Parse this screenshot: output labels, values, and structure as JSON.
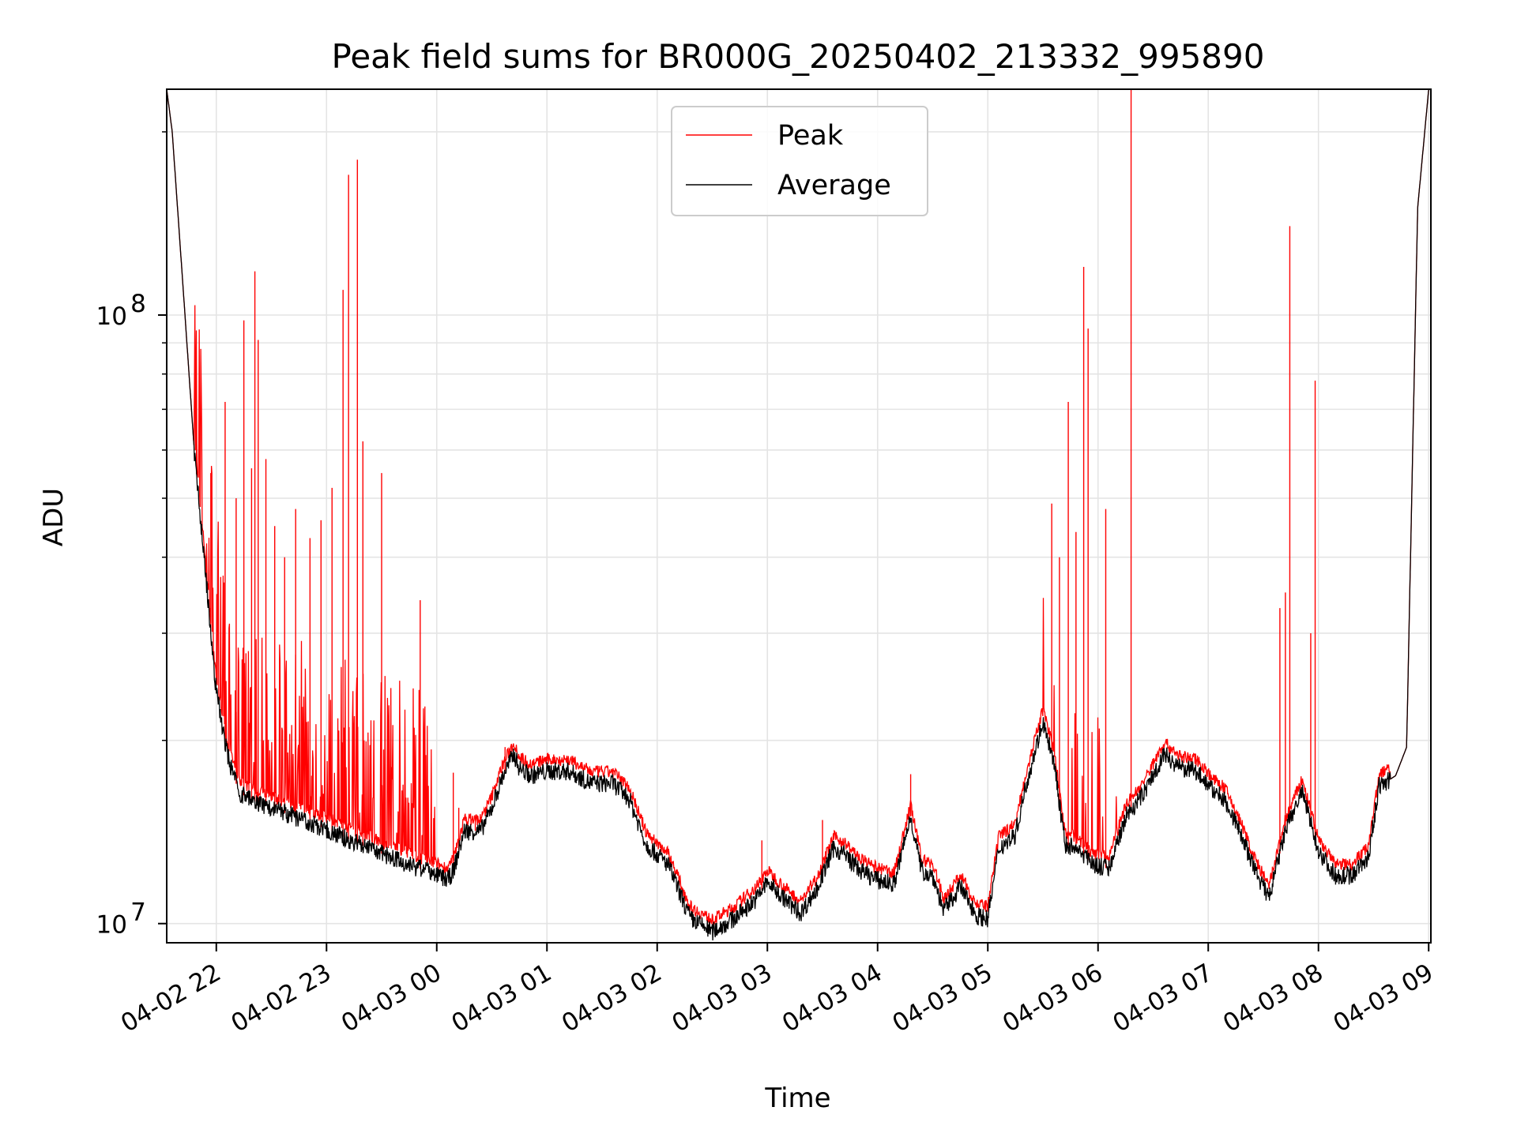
{
  "chart_data": {
    "type": "line",
    "title": "Peak field sums for BR000G_20250402_213332_995890",
    "xlabel": "Time",
    "ylabel": "ADU",
    "y_scale": "log",
    "ylim": [
      9300000,
      235000000
    ],
    "x_range_hours_since_2025-04-02_22:00": [
      -0.45,
      11.02
    ],
    "xticks": [
      {
        "t": 0,
        "label": "04-02 22"
      },
      {
        "t": 1,
        "label": "04-02 23"
      },
      {
        "t": 2,
        "label": "04-03 00"
      },
      {
        "t": 3,
        "label": "04-03 01"
      },
      {
        "t": 4,
        "label": "04-03 02"
      },
      {
        "t": 5,
        "label": "04-03 03"
      },
      {
        "t": 6,
        "label": "04-03 04"
      },
      {
        "t": 7,
        "label": "04-03 05"
      },
      {
        "t": 8,
        "label": "04-03 06"
      },
      {
        "t": 9,
        "label": "04-03 07"
      },
      {
        "t": 10,
        "label": "04-03 08"
      },
      {
        "t": 11,
        "label": "04-03 09"
      }
    ],
    "yticks_major": [
      {
        "v": 10000000,
        "base": "10",
        "exp": "7"
      },
      {
        "v": 100000000,
        "base": "10",
        "exp": "8"
      }
    ],
    "yticks_minor": [
      20000000,
      30000000,
      40000000,
      50000000,
      60000000,
      70000000,
      80000000,
      90000000,
      200000000
    ],
    "grid": true,
    "legend": {
      "position": "top-center"
    },
    "series": [
      {
        "name": "Average",
        "color": "#000000",
        "x": [
          -0.45,
          -0.4,
          -0.3,
          -0.2,
          -0.1,
          0.0,
          0.1,
          0.2,
          0.3,
          0.5,
          0.7,
          1.0,
          1.3,
          1.6,
          1.9,
          2.1,
          2.15,
          2.25,
          2.4,
          2.5,
          2.6,
          2.7,
          2.75,
          2.85,
          3.0,
          3.2,
          3.4,
          3.6,
          3.75,
          3.9,
          4.1,
          4.3,
          4.5,
          4.7,
          4.9,
          5.0,
          5.15,
          5.3,
          5.45,
          5.6,
          5.7,
          5.85,
          6.0,
          6.15,
          6.3,
          6.4,
          6.5,
          6.6,
          6.75,
          6.9,
          7.0,
          7.1,
          7.25,
          7.35,
          7.5,
          7.6,
          7.7,
          7.8,
          7.95,
          8.1,
          8.25,
          8.4,
          8.6,
          8.75,
          8.9,
          9.05,
          9.15,
          9.3,
          9.4,
          9.55,
          9.7,
          9.85,
          10.0,
          10.15,
          10.3,
          10.45,
          10.55,
          10.7,
          10.8,
          10.9,
          11.0
        ],
        "y": [
          235000000,
          200000000,
          110000000,
          60000000,
          38000000,
          24000000,
          19000000,
          16500000,
          16000000,
          15500000,
          15000000,
          14300000,
          13500000,
          12800000,
          12200000,
          11800000,
          12200000,
          14200000,
          14200000,
          15500000,
          17500000,
          19000000,
          18000000,
          17500000,
          17800000,
          17800000,
          17000000,
          17000000,
          16000000,
          13500000,
          12500000,
          10200000,
          9700000,
          10200000,
          11000000,
          11700000,
          11000000,
          10400000,
          11400000,
          13300000,
          13000000,
          12200000,
          11800000,
          11600000,
          15000000,
          12200000,
          12000000,
          10500000,
          11500000,
          10300000,
          10200000,
          13300000,
          14000000,
          17000000,
          21500000,
          18500000,
          13500000,
          13300000,
          12500000,
          12300000,
          15000000,
          16200000,
          19000000,
          18000000,
          17800000,
          16500000,
          16000000,
          14000000,
          12500000,
          11000000,
          14200000,
          16500000,
          13200000,
          12000000,
          12000000,
          12800000,
          16800000,
          17500000,
          19500000,
          150000000,
          235000000
        ]
      },
      {
        "name": "Peak",
        "color": "#ff0000",
        "spikes": [
          {
            "t": -0.18,
            "v": 72000000
          },
          {
            "t": -0.05,
            "v": 55000000
          },
          {
            "t": 0.08,
            "v": 72000000
          },
          {
            "t": 0.18,
            "v": 50000000
          },
          {
            "t": 0.25,
            "v": 98000000
          },
          {
            "t": 0.32,
            "v": 56000000
          },
          {
            "t": 0.35,
            "v": 118000000
          },
          {
            "t": 0.38,
            "v": 91000000
          },
          {
            "t": 0.45,
            "v": 58000000
          },
          {
            "t": 0.53,
            "v": 45000000
          },
          {
            "t": 0.62,
            "v": 40000000
          },
          {
            "t": 0.72,
            "v": 48000000
          },
          {
            "t": 0.85,
            "v": 43000000
          },
          {
            "t": 0.95,
            "v": 46000000
          },
          {
            "t": 1.05,
            "v": 52000000
          },
          {
            "t": 1.15,
            "v": 110000000
          },
          {
            "t": 1.2,
            "v": 170000000
          },
          {
            "t": 1.28,
            "v": 180000000
          },
          {
            "t": 1.33,
            "v": 62000000
          },
          {
            "t": 1.5,
            "v": 55000000
          },
          {
            "t": 1.85,
            "v": 34000000
          },
          {
            "t": 2.15,
            "v": 17700000
          },
          {
            "t": 2.2,
            "v": 15500000
          },
          {
            "t": 2.35,
            "v": 15000000
          },
          {
            "t": 2.62,
            "v": 19500000
          },
          {
            "t": 3.6,
            "v": 18000000
          },
          {
            "t": 4.95,
            "v": 13700000
          },
          {
            "t": 5.5,
            "v": 14800000
          },
          {
            "t": 6.3,
            "v": 17600000
          },
          {
            "t": 7.58,
            "v": 49000000
          },
          {
            "t": 7.65,
            "v": 40000000
          },
          {
            "t": 7.73,
            "v": 72000000
          },
          {
            "t": 7.8,
            "v": 44000000
          },
          {
            "t": 7.87,
            "v": 120000000
          },
          {
            "t": 7.91,
            "v": 95000000
          },
          {
            "t": 8.07,
            "v": 48000000
          },
          {
            "t": 8.3,
            "v": 235000000
          },
          {
            "t": 9.65,
            "v": 33000000
          },
          {
            "t": 9.7,
            "v": 35000000
          },
          {
            "t": 9.74,
            "v": 140000000
          },
          {
            "t": 9.93,
            "v": 30000000
          },
          {
            "t": 9.97,
            "v": 78000000
          }
        ]
      }
    ]
  }
}
